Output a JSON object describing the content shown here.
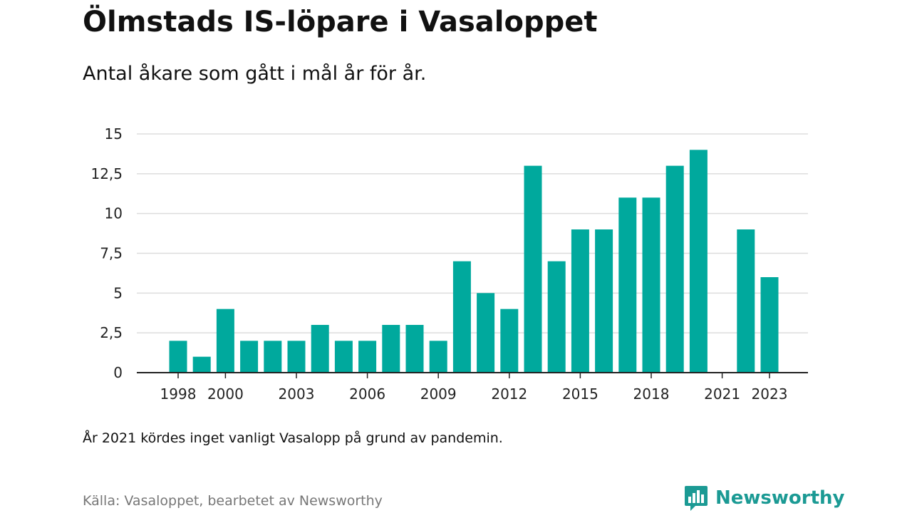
{
  "title": "Ölmstads IS-löpare i Vasaloppet",
  "subtitle": "Antal åkare som gått i mål år för år.",
  "note": "År 2021 kördes inget vanligt Vasalopp på grund av pandemin.",
  "source": "Källa: Vasaloppet, bearbetet av Newsworthy",
  "logo": {
    "text": "Newsworthy",
    "icon": "newsworthy-logo-icon"
  },
  "colors": {
    "bar": "#00a99d",
    "grid": "#dddddd",
    "axis": "#222222"
  },
  "chart_data": {
    "type": "bar",
    "title": "Ölmstads IS-löpare i Vasaloppet",
    "xlabel": "",
    "ylabel": "",
    "ylim": [
      0,
      15
    ],
    "grid": true,
    "yticks": [
      0,
      2.5,
      5,
      7.5,
      10,
      12.5,
      15
    ],
    "ytick_labels": [
      "0",
      "2,5",
      "5",
      "7,5",
      "10",
      "12,5",
      "15"
    ],
    "xtick_labels": [
      "1998",
      "2000",
      "2003",
      "2006",
      "2009",
      "2012",
      "2015",
      "2018",
      "2021",
      "2023"
    ],
    "categories": [
      1998,
      1999,
      2000,
      2001,
      2002,
      2003,
      2004,
      2005,
      2006,
      2007,
      2008,
      2009,
      2010,
      2011,
      2012,
      2013,
      2014,
      2015,
      2016,
      2017,
      2018,
      2019,
      2020,
      2021,
      2022,
      2023
    ],
    "values": [
      2,
      1,
      4,
      2,
      2,
      2,
      3,
      2,
      2,
      3,
      3,
      2,
      7,
      5,
      4,
      13,
      7,
      9,
      9,
      11,
      11,
      13,
      14,
      null,
      9,
      6
    ]
  }
}
